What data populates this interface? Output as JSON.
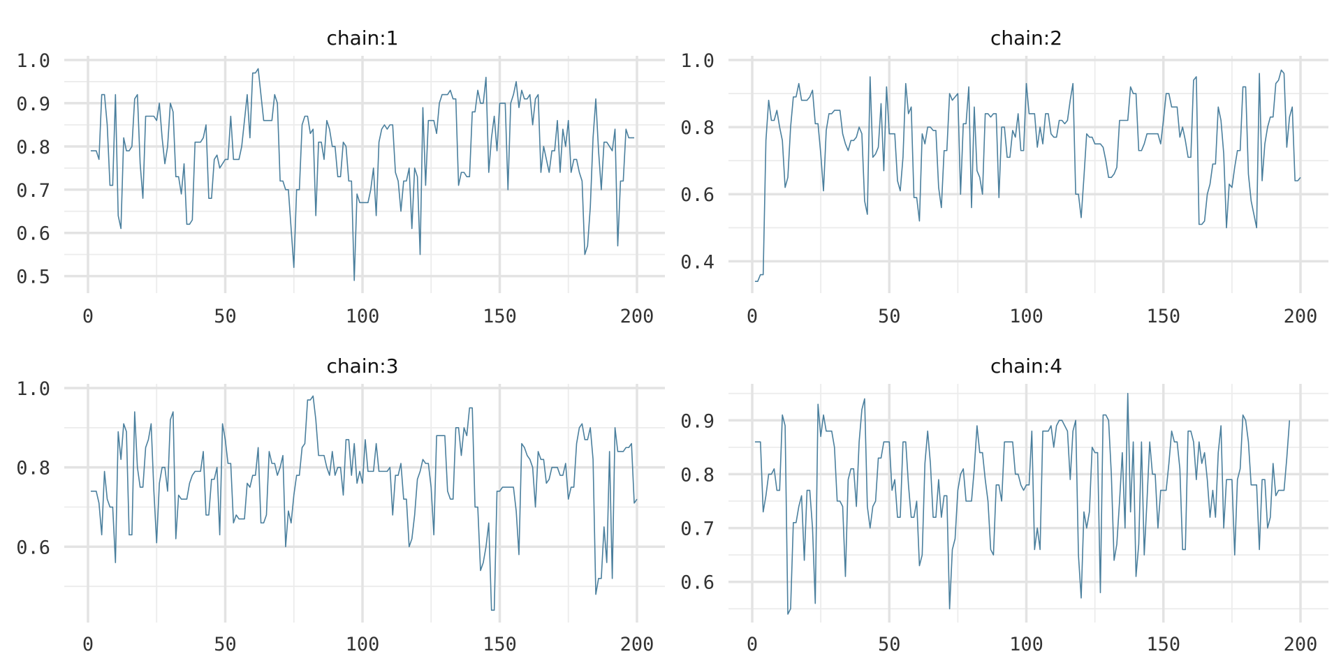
{
  "trace_color": "#4a7f9d",
  "chart_data": [
    {
      "type": "line",
      "title": "chain:1",
      "xlim": [
        0,
        200
      ],
      "ylim": [
        0.48,
        1.0
      ],
      "x_ticks": [
        0,
        50,
        100,
        150,
        200
      ],
      "x_tick_labels": [
        "0",
        "50",
        "100",
        "150",
        "200"
      ],
      "y_ticks": [
        0.5,
        0.6,
        0.7,
        0.8,
        0.9,
        1.0
      ],
      "y_tick_labels": [
        "0.5",
        "0.6",
        "0.7",
        "0.8",
        "0.9",
        "1.0"
      ],
      "grid": true,
      "x_start": 1,
      "values": [
        0.79,
        0.79,
        0.79,
        0.77,
        0.92,
        0.92,
        0.85,
        0.71,
        0.71,
        0.92,
        0.64,
        0.61,
        0.82,
        0.79,
        0.79,
        0.8,
        0.91,
        0.92,
        0.76,
        0.68,
        0.87,
        0.87,
        0.87,
        0.87,
        0.86,
        0.9,
        0.82,
        0.76,
        0.8,
        0.9,
        0.88,
        0.73,
        0.73,
        0.69,
        0.76,
        0.62,
        0.62,
        0.63,
        0.81,
        0.81,
        0.81,
        0.82,
        0.85,
        0.68,
        0.68,
        0.77,
        0.78,
        0.75,
        0.76,
        0.77,
        0.77,
        0.87,
        0.77,
        0.77,
        0.77,
        0.8,
        0.86,
        0.92,
        0.82,
        0.97,
        0.97,
        0.98,
        0.92,
        0.86,
        0.86,
        0.86,
        0.86,
        0.92,
        0.9,
        0.72,
        0.72,
        0.7,
        0.7,
        0.61,
        0.52,
        0.7,
        0.7,
        0.85,
        0.87,
        0.87,
        0.83,
        0.84,
        0.64,
        0.81,
        0.81,
        0.77,
        0.86,
        0.84,
        0.8,
        0.8,
        0.73,
        0.73,
        0.81,
        0.8,
        0.72,
        0.72,
        0.49,
        0.69,
        0.67,
        0.67,
        0.67,
        0.67,
        0.7,
        0.75,
        0.64,
        0.81,
        0.84,
        0.85,
        0.84,
        0.85,
        0.85,
        0.74,
        0.72,
        0.65,
        0.72,
        0.72,
        0.75,
        0.61,
        0.75,
        0.73,
        0.55,
        0.89,
        0.71,
        0.86,
        0.86,
        0.86,
        0.83,
        0.9,
        0.92,
        0.92,
        0.92,
        0.93,
        0.91,
        0.91,
        0.71,
        0.74,
        0.74,
        0.73,
        0.73,
        0.88,
        0.88,
        0.93,
        0.9,
        0.9,
        0.96,
        0.74,
        0.82,
        0.87,
        0.79,
        0.9,
        0.9,
        0.9,
        0.7,
        0.9,
        0.92,
        0.95,
        0.89,
        0.93,
        0.91,
        0.91,
        0.92,
        0.85,
        0.91,
        0.92,
        0.74,
        0.8,
        0.77,
        0.74,
        0.79,
        0.79,
        0.86,
        0.74,
        0.84,
        0.8,
        0.86,
        0.74,
        0.77,
        0.77,
        0.74,
        0.72,
        0.55,
        0.57,
        0.66,
        0.82,
        0.91,
        0.79,
        0.7,
        0.81,
        0.81,
        0.8,
        0.79,
        0.84,
        0.57,
        0.72,
        0.72,
        0.84,
        0.82,
        0.82,
        0.82
      ]
    },
    {
      "type": "line",
      "title": "chain:2",
      "xlim": [
        0,
        200
      ],
      "ylim": [
        0.33,
        1.0
      ],
      "x_ticks": [
        0,
        50,
        100,
        150,
        200
      ],
      "x_tick_labels": [
        "0",
        "50",
        "100",
        "150",
        "200"
      ],
      "y_ticks": [
        0.4,
        0.6,
        0.8,
        1.0
      ],
      "y_tick_labels": [
        "0.4",
        "0.6",
        "0.8",
        "1.0"
      ],
      "grid": true,
      "x_start": 1,
      "values": [
        0.34,
        0.34,
        0.36,
        0.36,
        0.76,
        0.88,
        0.82,
        0.82,
        0.85,
        0.8,
        0.76,
        0.62,
        0.65,
        0.8,
        0.89,
        0.89,
        0.93,
        0.88,
        0.88,
        0.88,
        0.89,
        0.91,
        0.81,
        0.81,
        0.72,
        0.61,
        0.79,
        0.84,
        0.84,
        0.85,
        0.85,
        0.85,
        0.78,
        0.75,
        0.73,
        0.76,
        0.76,
        0.77,
        0.8,
        0.78,
        0.58,
        0.54,
        0.95,
        0.71,
        0.72,
        0.74,
        0.87,
        0.67,
        0.92,
        0.78,
        0.78,
        0.78,
        0.64,
        0.61,
        0.71,
        0.93,
        0.84,
        0.86,
        0.59,
        0.59,
        0.52,
        0.78,
        0.75,
        0.8,
        0.8,
        0.79,
        0.79,
        0.62,
        0.56,
        0.73,
        0.73,
        0.9,
        0.88,
        0.89,
        0.9,
        0.6,
        0.81,
        0.81,
        0.92,
        0.56,
        0.86,
        0.67,
        0.65,
        0.6,
        0.84,
        0.84,
        0.83,
        0.84,
        0.84,
        0.59,
        0.8,
        0.8,
        0.71,
        0.71,
        0.79,
        0.77,
        0.84,
        0.73,
        0.73,
        0.93,
        0.84,
        0.84,
        0.84,
        0.74,
        0.8,
        0.75,
        0.84,
        0.84,
        0.78,
        0.77,
        0.77,
        0.82,
        0.82,
        0.81,
        0.82,
        0.88,
        0.93,
        0.6,
        0.6,
        0.53,
        0.65,
        0.78,
        0.77,
        0.77,
        0.75,
        0.75,
        0.75,
        0.74,
        0.7,
        0.65,
        0.65,
        0.66,
        0.68,
        0.82,
        0.82,
        0.82,
        0.82,
        0.92,
        0.9,
        0.9,
        0.73,
        0.73,
        0.75,
        0.78,
        0.78,
        0.78,
        0.78,
        0.78,
        0.75,
        0.82,
        0.9,
        0.9,
        0.86,
        0.86,
        0.86,
        0.77,
        0.8,
        0.76,
        0.71,
        0.71,
        0.94,
        0.95,
        0.51,
        0.51,
        0.52,
        0.6,
        0.63,
        0.69,
        0.69,
        0.86,
        0.82,
        0.72,
        0.5,
        0.63,
        0.62,
        0.68,
        0.73,
        0.73,
        0.92,
        0.92,
        0.66,
        0.58,
        0.54,
        0.5,
        0.96,
        0.64,
        0.75,
        0.8,
        0.83,
        0.83,
        0.93,
        0.94,
        0.97,
        0.96,
        0.74,
        0.83,
        0.86,
        0.64,
        0.64,
        0.65
      ]
    },
    {
      "type": "line",
      "title": "chain:3",
      "xlim": [
        0,
        200
      ],
      "ylim": [
        0.43,
        1.0
      ],
      "x_ticks": [
        0,
        50,
        100,
        150,
        200
      ],
      "x_tick_labels": [
        "0",
        "50",
        "100",
        "150",
        "200"
      ],
      "y_ticks": [
        0.6,
        0.8,
        1.0
      ],
      "y_tick_labels": [
        "0.6",
        "0.8",
        "1.0"
      ],
      "grid": true,
      "x_start": 1,
      "values": [
        0.74,
        0.74,
        0.74,
        0.71,
        0.63,
        0.79,
        0.72,
        0.7,
        0.7,
        0.56,
        0.89,
        0.82,
        0.91,
        0.89,
        0.63,
        0.63,
        0.94,
        0.8,
        0.75,
        0.75,
        0.85,
        0.87,
        0.91,
        0.74,
        0.61,
        0.76,
        0.8,
        0.8,
        0.74,
        0.92,
        0.94,
        0.62,
        0.73,
        0.72,
        0.72,
        0.72,
        0.76,
        0.78,
        0.79,
        0.79,
        0.79,
        0.84,
        0.68,
        0.68,
        0.77,
        0.77,
        0.8,
        0.63,
        0.91,
        0.87,
        0.81,
        0.81,
        0.66,
        0.68,
        0.67,
        0.67,
        0.67,
        0.76,
        0.75,
        0.78,
        0.78,
        0.85,
        0.66,
        0.66,
        0.68,
        0.84,
        0.81,
        0.81,
        0.78,
        0.8,
        0.83,
        0.6,
        0.69,
        0.66,
        0.73,
        0.78,
        0.78,
        0.85,
        0.86,
        0.97,
        0.97,
        0.98,
        0.92,
        0.83,
        0.83,
        0.83,
        0.8,
        0.78,
        0.84,
        0.78,
        0.8,
        0.8,
        0.73,
        0.87,
        0.87,
        0.78,
        0.86,
        0.76,
        0.79,
        0.76,
        0.87,
        0.79,
        0.79,
        0.79,
        0.86,
        0.79,
        0.79,
        0.79,
        0.79,
        0.8,
        0.68,
        0.78,
        0.78,
        0.81,
        0.72,
        0.72,
        0.6,
        0.62,
        0.68,
        0.77,
        0.79,
        0.82,
        0.81,
        0.81,
        0.75,
        0.63,
        0.88,
        0.88,
        0.88,
        0.88,
        0.74,
        0.72,
        0.72,
        0.9,
        0.9,
        0.83,
        0.9,
        0.88,
        0.95,
        0.95,
        0.7,
        0.7,
        0.54,
        0.56,
        0.6,
        0.66,
        0.44,
        0.44,
        0.74,
        0.74,
        0.75,
        0.75,
        0.75,
        0.75,
        0.75,
        0.69,
        0.58,
        0.86,
        0.85,
        0.83,
        0.82,
        0.8,
        0.7,
        0.84,
        0.82,
        0.82,
        0.76,
        0.77,
        0.8,
        0.8,
        0.8,
        0.78,
        0.78,
        0.81,
        0.72,
        0.75,
        0.75,
        0.86,
        0.9,
        0.91,
        0.87,
        0.87,
        0.9,
        0.82,
        0.48,
        0.52,
        0.52,
        0.65,
        0.56,
        0.84,
        0.52,
        0.9,
        0.84,
        0.84,
        0.84,
        0.85,
        0.85,
        0.86,
        0.71,
        0.72
      ]
    },
    {
      "type": "line",
      "title": "chain:4",
      "xlim": [
        0,
        200
      ],
      "ylim": [
        0.54,
        0.96
      ],
      "x_ticks": [
        0,
        50,
        100,
        150,
        200
      ],
      "x_tick_labels": [
        "0",
        "50",
        "100",
        "150",
        "200"
      ],
      "y_ticks": [
        0.6,
        0.7,
        0.8,
        0.9
      ],
      "y_tick_labels": [
        "0.6",
        "0.7",
        "0.8",
        "0.9"
      ],
      "grid": true,
      "x_start": 1,
      "values": [
        0.86,
        0.86,
        0.86,
        0.73,
        0.76,
        0.8,
        0.8,
        0.81,
        0.77,
        0.77,
        0.91,
        0.89,
        0.54,
        0.55,
        0.71,
        0.71,
        0.74,
        0.76,
        0.64,
        0.77,
        0.77,
        0.7,
        0.56,
        0.93,
        0.87,
        0.91,
        0.88,
        0.88,
        0.88,
        0.85,
        0.75,
        0.75,
        0.74,
        0.61,
        0.79,
        0.81,
        0.81,
        0.74,
        0.86,
        0.92,
        0.94,
        0.74,
        0.7,
        0.74,
        0.75,
        0.83,
        0.83,
        0.86,
        0.86,
        0.86,
        0.77,
        0.79,
        0.72,
        0.72,
        0.86,
        0.86,
        0.78,
        0.72,
        0.72,
        0.75,
        0.63,
        0.65,
        0.82,
        0.88,
        0.82,
        0.72,
        0.72,
        0.79,
        0.72,
        0.76,
        0.76,
        0.55,
        0.66,
        0.68,
        0.77,
        0.8,
        0.81,
        0.75,
        0.75,
        0.75,
        0.81,
        0.89,
        0.84,
        0.84,
        0.79,
        0.75,
        0.66,
        0.65,
        0.78,
        0.78,
        0.75,
        0.86,
        0.86,
        0.86,
        0.86,
        0.8,
        0.8,
        0.78,
        0.77,
        0.78,
        0.78,
        0.88,
        0.66,
        0.7,
        0.66,
        0.88,
        0.88,
        0.88,
        0.89,
        0.85,
        0.89,
        0.9,
        0.9,
        0.89,
        0.88,
        0.79,
        0.88,
        0.9,
        0.65,
        0.57,
        0.73,
        0.7,
        0.73,
        0.85,
        0.84,
        0.84,
        0.58,
        0.91,
        0.91,
        0.9,
        0.8,
        0.64,
        0.67,
        0.75,
        0.84,
        0.7,
        0.95,
        0.73,
        0.86,
        0.61,
        0.67,
        0.86,
        0.65,
        0.75,
        0.86,
        0.8,
        0.8,
        0.7,
        0.77,
        0.77,
        0.77,
        0.82,
        0.88,
        0.86,
        0.86,
        0.81,
        0.66,
        0.66,
        0.88,
        0.88,
        0.86,
        0.79,
        0.86,
        0.82,
        0.84,
        0.79,
        0.72,
        0.77,
        0.72,
        0.84,
        0.89,
        0.7,
        0.79,
        0.79,
        0.79,
        0.65,
        0.79,
        0.81,
        0.91,
        0.9,
        0.86,
        0.78,
        0.78,
        0.78,
        0.66,
        0.79,
        0.79,
        0.7,
        0.72,
        0.82,
        0.76,
        0.77,
        0.77,
        0.77,
        0.83,
        0.9
      ]
    }
  ]
}
